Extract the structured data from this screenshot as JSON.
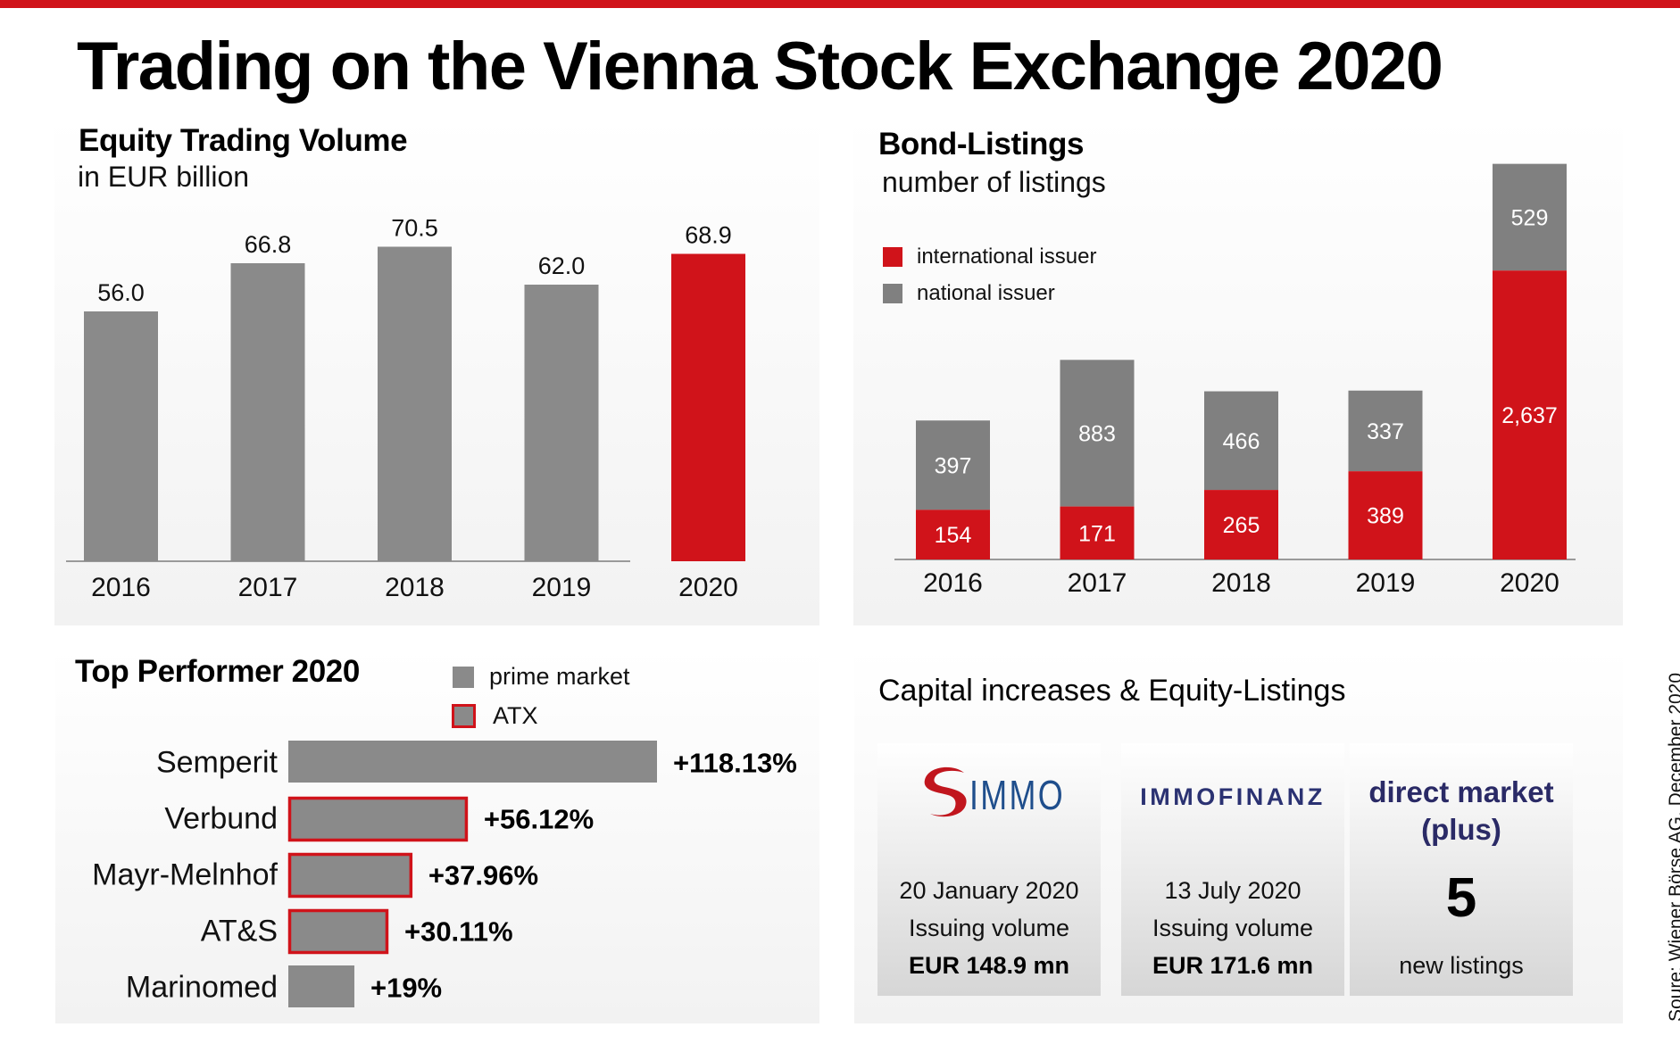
{
  "header": {
    "title": "Trading on the Vienna Stock Exchange 2020"
  },
  "colors": {
    "accent_red": "#d0131a",
    "bar_grey": "#8a8a8a",
    "bond_grey": "#808080",
    "navy": "#2b3272",
    "immo_blue": "#1f4e8c"
  },
  "equity": {
    "title": "Equity Trading Volume",
    "subtitle": "in EUR billion"
  },
  "bond": {
    "title": "Bond-Listings",
    "subtitle": "number of listings",
    "legend": [
      {
        "label": "international issuer",
        "color": "#d0131a"
      },
      {
        "label": "national issuer",
        "color": "#808080"
      }
    ]
  },
  "performers": {
    "title": "Top Performer 2020",
    "legend": [
      {
        "label": "prime market",
        "style": "fill"
      },
      {
        "label": "ATX",
        "style": "outlined"
      }
    ]
  },
  "capital": {
    "title": "Capital increases & Equity-Listings",
    "cards": [
      {
        "logo_text": "IMMO",
        "logo_icon": "s-immo-swirl-icon",
        "date": "20 January 2020",
        "label": "Issuing volume",
        "value": "EUR 148.9 mn"
      },
      {
        "logo_text": "IMMOFINANZ",
        "date": "13 July 2020",
        "label": "Issuing volume",
        "value": "EUR 171.6 mn"
      },
      {
        "heading_line1": "direct market",
        "heading_line2": "(plus)",
        "count": "5",
        "label": "new listings"
      }
    ]
  },
  "source": "Soure: Wiener Börse AG,  December 2020",
  "chart_data": [
    {
      "id": "equity",
      "type": "bar",
      "title": "Equity Trading Volume",
      "subtitle": "in EUR billion",
      "xlabel": "",
      "ylabel": "EUR billion",
      "categories": [
        "2016",
        "2017",
        "2018",
        "2019",
        "2020"
      ],
      "values": [
        56.0,
        66.8,
        70.5,
        62.0,
        68.9
      ],
      "value_labels": [
        "56.0",
        "66.8",
        "70.5",
        "62.0",
        "68.9"
      ],
      "highlight": [
        false,
        false,
        false,
        false,
        true
      ],
      "ylim": [
        0,
        75
      ],
      "grid": false
    },
    {
      "id": "bond",
      "type": "bar",
      "stacked": true,
      "title": "Bond-Listings",
      "subtitle": "number of listings",
      "categories": [
        "2016",
        "2017",
        "2018",
        "2019",
        "2020"
      ],
      "series": [
        {
          "name": "international issuer",
          "values": [
            154,
            171,
            265,
            389,
            2637
          ],
          "labels": [
            "154",
            "171",
            "265",
            "389",
            "2,637"
          ]
        },
        {
          "name": "national issuer",
          "values": [
            397,
            883,
            466,
            337,
            529
          ],
          "labels": [
            "397",
            "883",
            "466",
            "337",
            "529"
          ]
        }
      ],
      "legend": "top-left",
      "grid": false
    },
    {
      "id": "performers",
      "type": "bar",
      "orientation": "horizontal",
      "title": "Top Performer 2020",
      "categories": [
        "Semperit",
        "Verbund",
        "Mayr-Melnhof",
        "AT&S",
        "Marinomed"
      ],
      "values": [
        118.13,
        56.12,
        37.96,
        30.11,
        19
      ],
      "value_labels": [
        "+118.13%",
        "+56.12%",
        "+37.96%",
        "+30.11%",
        "+19%"
      ],
      "atx_member": [
        false,
        true,
        true,
        true,
        false
      ],
      "unit": "%",
      "legend": "top-right"
    }
  ]
}
